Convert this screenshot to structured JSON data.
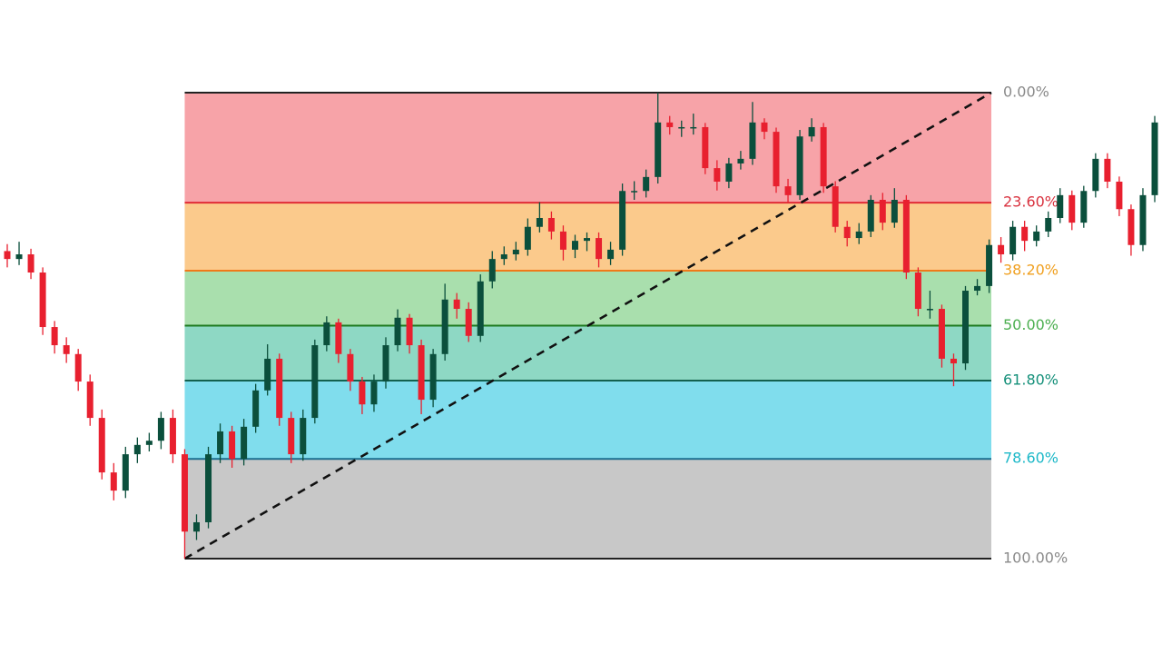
{
  "chart_data": {
    "type": "candlestick",
    "up_color": "#0b4f3c",
    "down_color": "#e8202f",
    "levels": [
      {
        "value": 0,
        "label": "0.00%",
        "color": "#222222",
        "label_color": "#8a8a8a",
        "fill": "#f7a3a8"
      },
      {
        "value": 23.6,
        "label": "23.60%",
        "color": "#e02c36",
        "label_color": "#d9323f",
        "fill": "#fbca8c"
      },
      {
        "value": 38.2,
        "label": "38.20%",
        "color": "#ef7a1a",
        "label_color": "#f0a020",
        "fill": "#a9dfad"
      },
      {
        "value": 50,
        "label": "50.00%",
        "color": "#1f7a1f",
        "label_color": "#4caf50",
        "fill": "#8ed8c4"
      },
      {
        "value": 61.8,
        "label": "61.80%",
        "color": "#14614f",
        "label_color": "#15907a",
        "fill": "#80dded"
      },
      {
        "value": 78.6,
        "label": "78.60%",
        "color": "#1c6e8e",
        "label_color": "#1cb8c8",
        "fill": "#c8c8c8"
      },
      {
        "value": 100,
        "label": "100.00%",
        "color": "#222222",
        "label_color": "#8a8a8a"
      }
    ],
    "candles": [
      [
        34.0,
        32.5,
        37.5,
        35.7
      ],
      [
        35.7,
        32.0,
        37.0,
        34.7
      ],
      [
        34.7,
        33.5,
        40.0,
        38.6
      ],
      [
        38.6,
        37.5,
        52.0,
        50.3
      ],
      [
        50.3,
        49.0,
        56.0,
        54.2
      ],
      [
        54.2,
        52.5,
        58.0,
        56.1
      ],
      [
        56.1,
        55.0,
        64.0,
        62.0
      ],
      [
        62.0,
        60.5,
        71.5,
        69.8
      ],
      [
        69.8,
        68.0,
        83.0,
        81.5
      ],
      [
        81.5,
        79.5,
        87.5,
        85.4
      ],
      [
        85.4,
        76.0,
        87.0,
        77.6
      ],
      [
        77.6,
        74.0,
        79.5,
        75.6
      ],
      [
        75.6,
        73.0,
        77.0,
        74.7
      ],
      [
        74.7,
        68.5,
        76.5,
        69.8
      ],
      [
        69.8,
        68.0,
        79.5,
        77.6
      ],
      [
        77.6,
        76.5,
        100,
        94.2
      ],
      [
        94.2,
        90.5,
        96.0,
        92.2
      ],
      [
        92.2,
        76.0,
        93.5,
        77.6
      ],
      [
        77.6,
        71.0,
        79.5,
        72.7
      ],
      [
        72.7,
        71.5,
        80.5,
        78.6
      ],
      [
        78.6,
        70.0,
        80.0,
        71.7
      ],
      [
        71.7,
        62.5,
        73.0,
        63.9
      ],
      [
        63.9,
        54.0,
        65.0,
        57.1
      ],
      [
        57.1,
        56.0,
        71.5,
        69.8
      ],
      [
        69.8,
        68.5,
        79.5,
        77.6
      ],
      [
        77.6,
        68.0,
        79.0,
        69.8
      ],
      [
        69.8,
        53.0,
        71.0,
        54.2
      ],
      [
        54.2,
        48.0,
        55.5,
        49.3
      ],
      [
        49.3,
        48.5,
        58.0,
        56.1
      ],
      [
        56.1,
        55.0,
        64.0,
        62.0
      ],
      [
        62.0,
        61.0,
        69.0,
        66.9
      ],
      [
        66.9,
        60.5,
        68.5,
        62.0
      ],
      [
        62.0,
        52.5,
        63.5,
        54.2
      ],
      [
        54.2,
        46.5,
        55.5,
        48.3
      ],
      [
        48.3,
        47.5,
        56.0,
        54.2
      ],
      [
        54.2,
        53.0,
        69.0,
        65.9
      ],
      [
        65.9,
        55.0,
        67.5,
        56.1
      ],
      [
        56.1,
        41.0,
        57.5,
        44.4
      ],
      [
        44.4,
        43.0,
        48.5,
        46.4
      ],
      [
        46.4,
        45.0,
        53.5,
        52.2
      ],
      [
        52.2,
        39.0,
        53.5,
        40.5
      ],
      [
        40.5,
        34.0,
        42.0,
        35.7
      ],
      [
        35.7,
        33.0,
        37.0,
        34.7
      ],
      [
        34.7,
        32.0,
        36.0,
        33.7
      ],
      [
        33.7,
        27.0,
        35.0,
        28.8
      ],
      [
        28.8,
        23.5,
        30.0,
        26.9
      ],
      [
        26.9,
        25.5,
        31.5,
        29.8
      ],
      [
        29.8,
        28.5,
        36.0,
        33.7
      ],
      [
        33.7,
        30.5,
        35.5,
        31.8
      ],
      [
        31.8,
        30.0,
        34.0,
        31.2
      ],
      [
        31.2,
        30.0,
        37.5,
        35.7
      ],
      [
        35.7,
        32.0,
        37.0,
        33.7
      ],
      [
        33.7,
        19.5,
        35.0,
        21.1
      ],
      [
        21.1,
        19.0,
        23.0,
        21.1
      ],
      [
        21.1,
        16.5,
        22.5,
        18.1
      ],
      [
        18.1,
        0,
        19.5,
        6.4
      ],
      [
        6.4,
        5.0,
        9.0,
        7.4
      ],
      [
        7.4,
        6.0,
        9.5,
        7.4
      ],
      [
        7.4,
        4.5,
        9.0,
        7.4
      ],
      [
        7.4,
        6.5,
        17.5,
        16.2
      ],
      [
        16.2,
        14.5,
        21.0,
        19.1
      ],
      [
        19.1,
        14.0,
        20.5,
        15.2
      ],
      [
        15.2,
        12.5,
        16.5,
        14.2
      ],
      [
        14.2,
        2.0,
        15.5,
        6.4
      ],
      [
        6.4,
        5.5,
        10.0,
        8.4
      ],
      [
        8.4,
        7.5,
        21.5,
        20.1
      ],
      [
        20.1,
        18.5,
        23.5,
        22.0
      ],
      [
        22.0,
        8.0,
        23.0,
        9.4
      ],
      [
        9.4,
        5.5,
        10.5,
        7.4
      ],
      [
        7.4,
        6.5,
        21.5,
        20.1
      ],
      [
        20.1,
        19.0,
        30.0,
        28.8
      ],
      [
        28.8,
        27.5,
        33.0,
        31.2
      ],
      [
        31.2,
        28.0,
        32.5,
        29.8
      ],
      [
        29.8,
        22.0,
        31.0,
        23.0
      ],
      [
        23.0,
        21.5,
        29.5,
        27.9
      ],
      [
        27.9,
        20.5,
        29.0,
        23.0
      ],
      [
        23.0,
        22.0,
        40.0,
        38.6
      ],
      [
        38.6,
        37.5,
        48.0,
        46.4
      ],
      [
        46.4,
        42.5,
        48.5,
        46.4
      ],
      [
        46.4,
        45.5,
        59.0,
        57.1
      ],
      [
        57.1,
        56.0,
        63.0,
        58.1
      ],
      [
        58.1,
        41.5,
        59.5,
        42.5
      ],
      [
        42.5,
        40.0,
        43.5,
        41.5
      ],
      [
        41.5,
        31.5,
        43.0,
        32.7
      ],
      [
        32.7,
        31.0,
        36.5,
        34.7
      ],
      [
        34.7,
        27.5,
        36.0,
        28.8
      ],
      [
        28.8,
        27.5,
        34.0,
        31.8
      ],
      [
        31.8,
        28.5,
        33.0,
        29.8
      ],
      [
        29.8,
        25.5,
        31.0,
        26.9
      ],
      [
        26.9,
        20.5,
        28.0,
        22.0
      ],
      [
        22.0,
        21.0,
        29.5,
        27.9
      ],
      [
        27.9,
        20.0,
        29.0,
        21.1
      ],
      [
        21.1,
        13.0,
        22.5,
        14.2
      ],
      [
        14.2,
        13.0,
        20.5,
        19.1
      ],
      [
        19.1,
        18.0,
        26.5,
        25.0
      ],
      [
        25.0,
        24.0,
        35.0,
        32.7
      ],
      [
        32.7,
        20.5,
        34.0,
        22.0
      ],
      [
        22.0,
        5.0,
        23.5,
        6.4
      ]
    ]
  }
}
